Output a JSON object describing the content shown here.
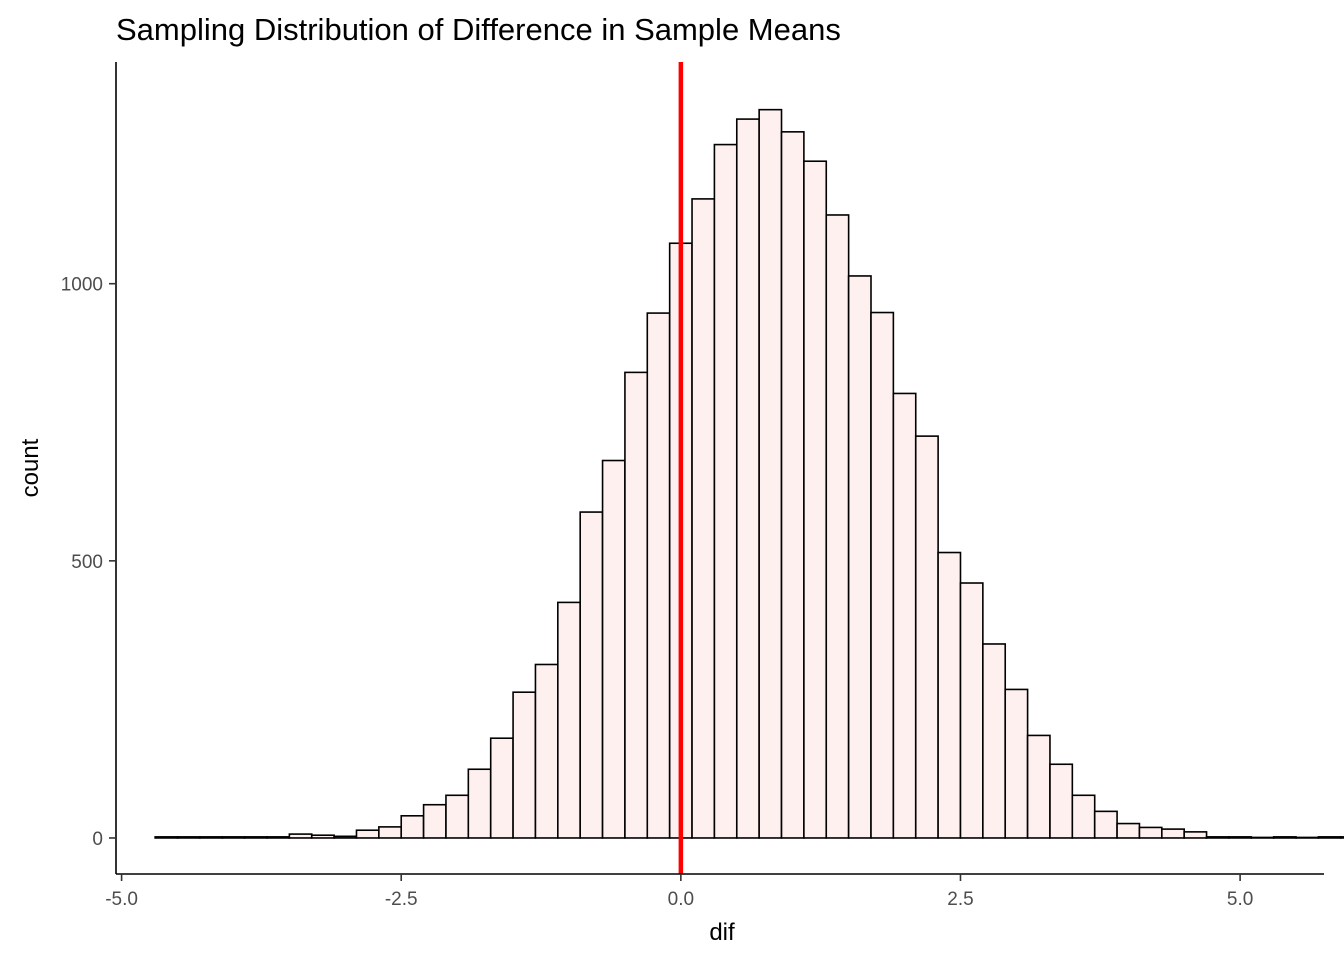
{
  "chart_data": {
    "type": "bar",
    "subtype": "histogram",
    "title": "Sampling Distribution of Difference in Sample Means",
    "xlabel": "dif",
    "ylabel": "count",
    "xlim": [
      -5.05,
      5.75
    ],
    "ylim": [
      -65,
      1400
    ],
    "x_ticks": [
      -5.0,
      -2.5,
      0.0,
      2.5,
      5.0
    ],
    "x_tick_labels": [
      "-5.0",
      "-2.5",
      "0.0",
      "2.5",
      "5.0"
    ],
    "y_ticks": [
      0,
      500,
      1000
    ],
    "y_tick_labels": [
      "0",
      "500",
      "1000"
    ],
    "bin_width": 0.2,
    "bin_start": -4.7,
    "counts": [
      2,
      2,
      2,
      2,
      2,
      2,
      7,
      5,
      3,
      14,
      20,
      40,
      60,
      77,
      124,
      180,
      263,
      313,
      425,
      588,
      681,
      840,
      947,
      1073,
      1153,
      1251,
      1297,
      1314,
      1274,
      1221,
      1124,
      1014,
      948,
      802,
      725,
      515,
      460,
      350,
      268,
      185,
      133,
      77,
      48,
      26,
      19,
      16,
      11,
      2,
      2,
      1,
      2,
      1,
      2,
      2,
      2,
      1
    ],
    "reference_line": {
      "x": 0.0,
      "color": "#ff0000"
    },
    "bar_fill": "#fff0f0",
    "bar_stroke": "#000000",
    "grid": false
  }
}
